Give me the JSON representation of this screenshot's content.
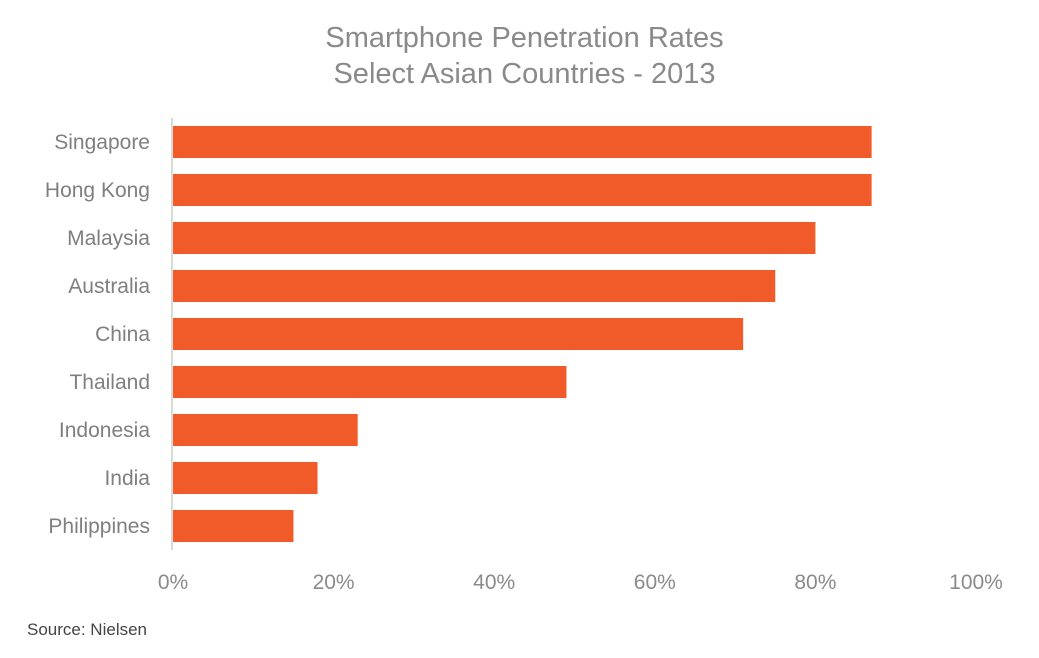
{
  "chart_data": {
    "type": "bar",
    "orientation": "horizontal",
    "title": "Smartphone Penetration Rates",
    "subtitle": "Select Asian Countries - 2013",
    "categories": [
      "Singapore",
      "Hong Kong",
      "Malaysia",
      "Australia",
      "China",
      "Thailand",
      "Indonesia",
      "India",
      "Philippines"
    ],
    "values": [
      87,
      87,
      80,
      75,
      71,
      49,
      23,
      18,
      15
    ],
    "xlim": [
      0,
      100
    ],
    "xticks": [
      "0%",
      "20%",
      "40%",
      "60%",
      "80%",
      "100%"
    ],
    "grid": false,
    "bar_color": "#f15a29",
    "source": "Source: Nielsen"
  }
}
